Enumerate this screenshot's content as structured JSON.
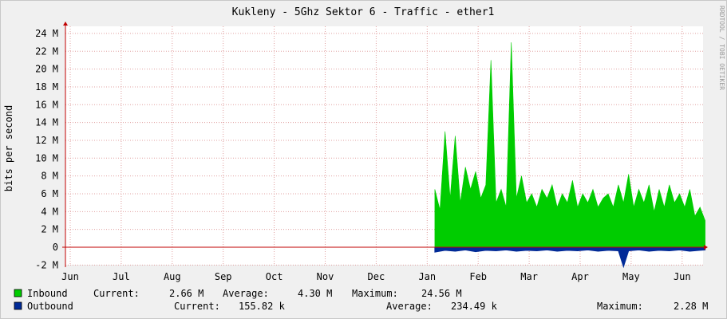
{
  "chart_data": {
    "type": "area",
    "title": "Kukleny - 5Ghz Sektor 6 - Traffic - ether1",
    "ylabel": "bits per second",
    "watermark": "RRDTOOL / TOBI OETIKER",
    "ylim": [
      -2,
      24.5
    ],
    "y_ticks": [
      -2,
      0,
      2,
      4,
      6,
      8,
      10,
      12,
      14,
      16,
      18,
      20,
      22,
      24
    ],
    "y_tick_labels": [
      "-2 M",
      "0",
      "2 M",
      "4 M",
      "6 M",
      "8 M",
      "10 M",
      "12 M",
      "14 M",
      "16 M",
      "18 M",
      "20 M",
      "22 M",
      "24 M"
    ],
    "x_unit": "month index (0 = Jun, 12 = Jun)",
    "xlim": [
      0,
      12.5
    ],
    "x_ticks": [
      0,
      1,
      2,
      3,
      4,
      5,
      6,
      7,
      8,
      9,
      10,
      11,
      12
    ],
    "x_tick_labels": [
      "Jun",
      "Jul",
      "Aug",
      "Sep",
      "Oct",
      "Nov",
      "Dec",
      "Jan",
      "Feb",
      "Mar",
      "Apr",
      "May",
      "Jun"
    ],
    "data_start": 7.15,
    "series": [
      {
        "name": "Inbound",
        "color": "#00cc00",
        "x": [
          7.15,
          7.25,
          7.35,
          7.45,
          7.55,
          7.65,
          7.75,
          7.85,
          7.95,
          8.05,
          8.15,
          8.25,
          8.35,
          8.45,
          8.55,
          8.65,
          8.75,
          8.85,
          8.95,
          9.05,
          9.15,
          9.25,
          9.35,
          9.45,
          9.55,
          9.65,
          9.75,
          9.85,
          9.95,
          10.05,
          10.15,
          10.25,
          10.35,
          10.45,
          10.55,
          10.65,
          10.75,
          10.85,
          10.95,
          11.05,
          11.15,
          11.25,
          11.35,
          11.45,
          11.55,
          11.65,
          11.75,
          11.85,
          11.95,
          12.05,
          12.15,
          12.25,
          12.35,
          12.45
        ],
        "values": [
          6.5,
          4.2,
          13.0,
          5.5,
          12.5,
          5.0,
          9.0,
          6.5,
          8.5,
          5.5,
          7.0,
          21.0,
          5.0,
          6.5,
          4.5,
          23.0,
          5.5,
          8.0,
          5.0,
          6.0,
          4.5,
          6.5,
          5.5,
          7.0,
          4.5,
          6.0,
          5.0,
          7.5,
          4.5,
          6.0,
          5.0,
          6.5,
          4.5,
          5.5,
          6.0,
          4.5,
          7.0,
          5.0,
          8.2,
          4.5,
          6.5,
          5.0,
          7.0,
          4.0,
          6.5,
          4.5,
          7.0,
          5.0,
          6.0,
          4.5,
          6.5,
          3.5,
          4.5,
          3.0
        ]
      },
      {
        "name": "Outbound",
        "color": "#002a97",
        "x": [
          7.15,
          7.35,
          7.55,
          7.75,
          7.95,
          8.15,
          8.35,
          8.55,
          8.75,
          8.95,
          9.15,
          9.35,
          9.55,
          9.75,
          9.95,
          10.15,
          10.35,
          10.55,
          10.75,
          10.85,
          10.95,
          11.15,
          11.35,
          11.55,
          11.75,
          11.95,
          12.15,
          12.35,
          12.45
        ],
        "values": [
          -0.55,
          -0.35,
          -0.45,
          -0.3,
          -0.5,
          -0.35,
          -0.4,
          -0.3,
          -0.45,
          -0.35,
          -0.4,
          -0.3,
          -0.45,
          -0.35,
          -0.4,
          -0.3,
          -0.45,
          -0.35,
          -0.4,
          -2.2,
          -0.4,
          -0.3,
          -0.45,
          -0.35,
          -0.4,
          -0.3,
          -0.45,
          -0.35,
          -0.3
        ]
      }
    ],
    "legend": [
      {
        "key": "inbound",
        "name": "Inbound",
        "color": "#00cc00",
        "current_label": "Current:",
        "current": "2.66 M",
        "average_label": "Average:",
        "average": "4.30 M",
        "maximum_label": "Maximum:",
        "maximum": "24.56 M"
      },
      {
        "key": "outbound",
        "name": "Outbound",
        "color": "#002a97",
        "current_label": "Current:",
        "current": "155.82 k",
        "average_label": "Average:",
        "average": "234.49 k",
        "maximum_label": "Maximum:",
        "maximum": "2.28 M"
      }
    ]
  }
}
